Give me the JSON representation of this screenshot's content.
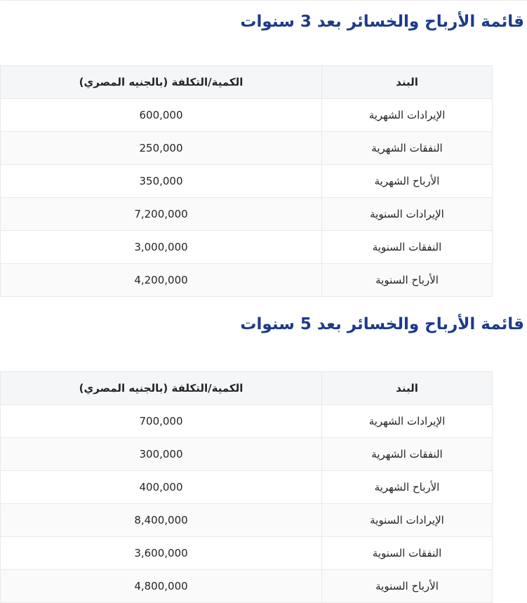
{
  "colors": {
    "title_blue": "#1e3a8a",
    "header_bg": "#f5f6f7",
    "stripe_bg": "#fafafa",
    "border": "#e9e9e9",
    "cell_text": "#212529"
  },
  "sections": [
    {
      "title": "قائمة الأرباح والخسائر بعد 3 سنوات",
      "table": {
        "headers": [
          "البند",
          "الكمية/التكلفة (بالجنيه المصري)"
        ],
        "rows": [
          {
            "item": "الإيرادات الشهرية",
            "value": "600,000"
          },
          {
            "item": "النفقات الشهرية",
            "value": "250,000"
          },
          {
            "item": "الأرباح الشهرية",
            "value": "350,000"
          },
          {
            "item": "الإيرادات السنوية",
            "value": "7,200,000"
          },
          {
            "item": "النفقات السنوية",
            "value": "3,000,000"
          },
          {
            "item": "الأرباح السنوية",
            "value": "4,200,000"
          }
        ]
      }
    },
    {
      "title": "قائمة الأرباح والخسائر بعد 5 سنوات",
      "table": {
        "headers": [
          "البند",
          "الكمية/التكلفة (بالجنيه المصري)"
        ],
        "rows": [
          {
            "item": "الإيرادات الشهرية",
            "value": "700,000"
          },
          {
            "item": "النفقات الشهرية",
            "value": "300,000"
          },
          {
            "item": "الأرباح الشهرية",
            "value": "400,000"
          },
          {
            "item": "الإيرادات السنوية",
            "value": "8,400,000"
          },
          {
            "item": "النفقات السنوية",
            "value": "3,600,000"
          },
          {
            "item": "الأرباح السنوية",
            "value": "4,800,000"
          }
        ]
      }
    }
  ]
}
